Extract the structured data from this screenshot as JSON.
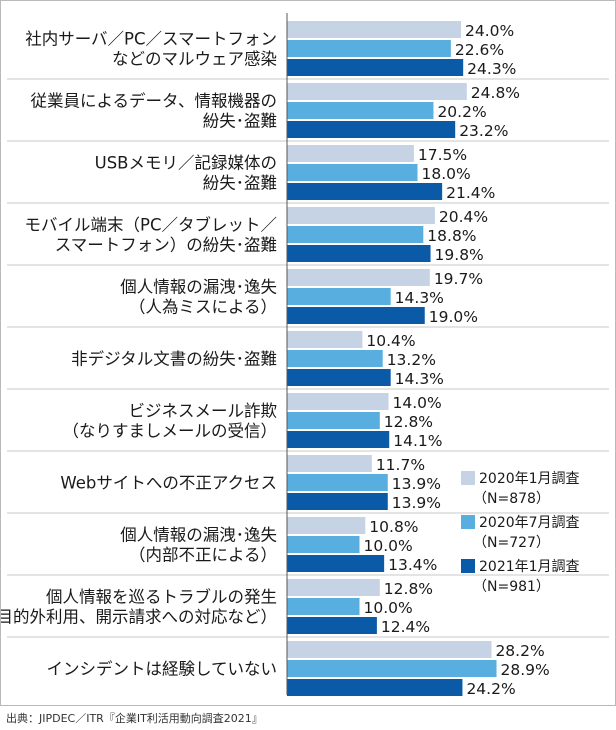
{
  "chart_data": {
    "type": "bar",
    "orientation": "horizontal",
    "categories": [
      [
        "社内サーバ／PC／スマートフォン",
        "などのマルウェア感染"
      ],
      [
        "従業員によるデータ、情報機器の",
        "紛失･盗難"
      ],
      [
        "USBメモリ／記録媒体の",
        "紛失･盗難"
      ],
      [
        "モバイル端末（PC／タブレット／",
        "スマートフォン）の紛失･盗難"
      ],
      [
        "個人情報の漏洩･逸失",
        "（人為ミスによる）"
      ],
      [
        "非デジタル文書の紛失･盗難"
      ],
      [
        "ビジネスメール詐欺",
        "（なりすましメールの受信）"
      ],
      [
        "Webサイトへの不正アクセス"
      ],
      [
        "個人情報の漏洩･逸失",
        "（内部不正による）"
      ],
      [
        "個人情報を巡るトラブルの発生",
        "（目的外利用、開示請求への対応など）"
      ],
      [
        "インシデントは経験していない"
      ]
    ],
    "series": [
      {
        "name": "2020年1月調査",
        "name_sub": "（N=878）",
        "color": "#c6d3e4",
        "values": [
          24.0,
          24.8,
          17.5,
          20.4,
          19.7,
          10.4,
          14.0,
          11.7,
          10.8,
          12.8,
          28.2
        ],
        "labels": [
          "24.0%",
          "24.8%",
          "17.5%",
          "20.4%",
          "19.7%",
          "10.4%",
          "14.0%",
          "11.7%",
          "10.8%",
          "12.8%",
          "28.2%"
        ]
      },
      {
        "name": "2020年7月調査",
        "name_sub": "（N=727）",
        "color": "#59aee0",
        "values": [
          22.6,
          20.2,
          18.0,
          18.8,
          14.3,
          13.2,
          12.8,
          13.9,
          10.0,
          10.0,
          28.9
        ],
        "labels": [
          "22.6%",
          "20.2%",
          "18.0%",
          "18.8%",
          "14.3%",
          "13.2%",
          "12.8%",
          "13.9%",
          "10.0%",
          "10.0%",
          "28.9%"
        ]
      },
      {
        "name": "2021年1月調査",
        "name_sub": "（N=981）",
        "color": "#0b5aa8",
        "values": [
          24.3,
          23.2,
          21.4,
          19.8,
          19.0,
          14.3,
          14.1,
          13.9,
          13.4,
          12.4,
          24.2
        ],
        "labels": [
          "24.3%",
          "23.2%",
          "21.4%",
          "19.8%",
          "19.0%",
          "14.3%",
          "14.1%",
          "13.9%",
          "13.4%",
          "12.4%",
          "24.2%"
        ]
      }
    ],
    "xlim": [
      0,
      32
    ],
    "grid": false,
    "legend_position": "right",
    "source": "出典：JIPDEC／ITR『企業IT利活用動向調査2021』"
  }
}
